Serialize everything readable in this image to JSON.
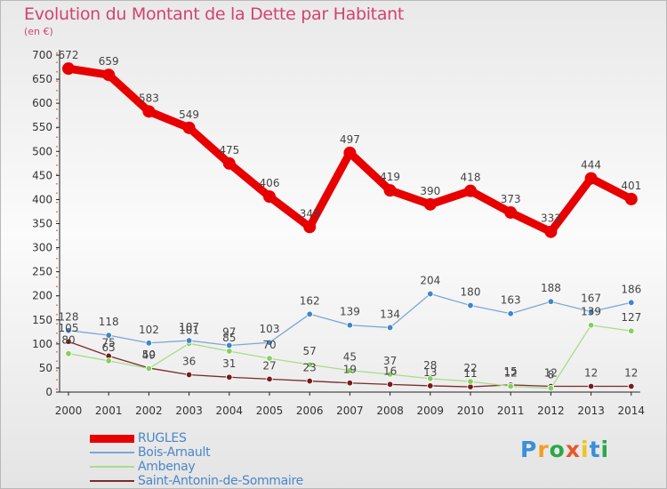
{
  "title": "Evolution du Montant de la Dette par Habitant",
  "subtitle": "(en €)",
  "logo": {
    "text": "Proxiti",
    "colors": [
      "#3a8fd8",
      "#f0a023",
      "#2aa84a",
      "#e8562a",
      "#f0c41f",
      "#3a8fd8",
      "#2aa84a"
    ]
  },
  "chart_data": {
    "type": "line",
    "title": "Evolution du Montant de la Dette par Habitant",
    "subtitle": "(en €)",
    "xlabel": "",
    "ylabel": "",
    "x": [
      "2000",
      "2001",
      "2002",
      "2003",
      "2004",
      "2005",
      "2006",
      "2007",
      "2008",
      "2009",
      "2010",
      "2011",
      "2012",
      "2013",
      "2014"
    ],
    "ylim": [
      0,
      700
    ],
    "yticks": [
      "0",
      "50",
      "100",
      "150",
      "200",
      "250",
      "300",
      "350",
      "400",
      "450",
      "500",
      "550",
      "600",
      "650",
      "700"
    ],
    "grid": false,
    "legend_position": "bottom-left",
    "series": [
      {
        "name": "RUGLES",
        "color": "#e80000",
        "style": "thick",
        "values": [
          672,
          659,
          583,
          549,
          475,
          406,
          343,
          497,
          419,
          390,
          418,
          373,
          333,
          444,
          401
        ]
      },
      {
        "name": "Bois-Arnault",
        "color": "#7ea6d6",
        "marker": "#3f86c8",
        "style": "thin",
        "values": [
          128,
          118,
          102,
          107,
          97,
          103,
          162,
          139,
          134,
          204,
          180,
          163,
          188,
          167,
          186
        ]
      },
      {
        "name": "Ambenay",
        "color": "#a8dc8a",
        "marker": "#83d05c",
        "style": "thin",
        "values": [
          80,
          65,
          49,
          101,
          85,
          70,
          57,
          45,
          37,
          28,
          22,
          12,
          8,
          139,
          127
        ]
      },
      {
        "name": "Saint-Antonin-de-Sommaire",
        "color": "#7a2a2a",
        "marker": "#7a1a1a",
        "style": "thin",
        "values": [
          105,
          75,
          50,
          36,
          31,
          27,
          23,
          19,
          16,
          13,
          11,
          15,
          12,
          12,
          12
        ]
      }
    ]
  }
}
